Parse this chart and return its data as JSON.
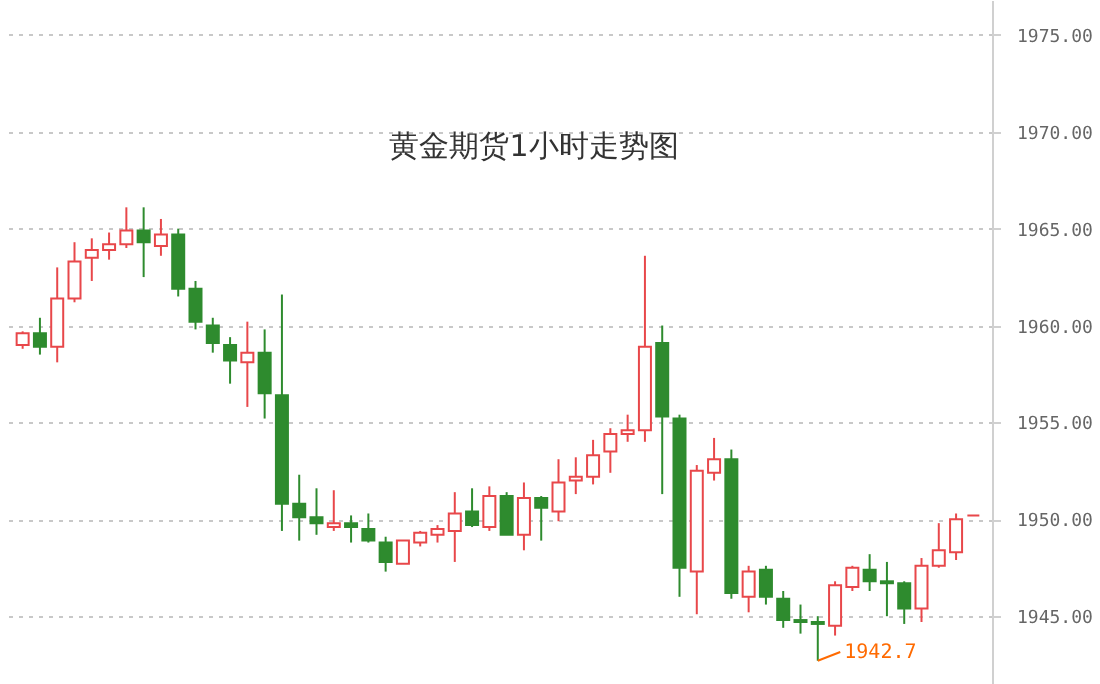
{
  "chart_data": {
    "type": "candlestick",
    "title": "黄金期货1小时走势图",
    "categories": [
      null,
      null,
      null,
      null,
      null,
      null,
      null,
      null,
      null,
      null,
      null,
      null,
      null,
      null,
      null,
      null,
      null,
      null,
      null,
      null,
      null,
      null,
      null,
      null,
      null,
      null,
      null,
      null,
      null,
      null,
      null,
      null,
      null,
      null,
      null,
      null,
      null,
      null,
      null,
      null,
      null,
      null,
      null,
      null,
      null,
      null,
      null,
      null,
      null,
      null,
      null,
      null,
      null,
      null,
      null,
      null
    ],
    "ohlc": [
      [
        1959.0,
        1959.7,
        1958.8,
        1959.6
      ],
      [
        1959.6,
        1960.4,
        1958.5,
        1958.9
      ],
      [
        1958.9,
        1963.0,
        1958.1,
        1961.4
      ],
      [
        1961.4,
        1964.3,
        1961.2,
        1963.3
      ],
      [
        1963.5,
        1964.5,
        1962.3,
        1963.9
      ],
      [
        1963.9,
        1964.8,
        1963.4,
        1964.2
      ],
      [
        1964.2,
        1966.1,
        1964.0,
        1964.9
      ],
      [
        1964.9,
        1966.1,
        1962.5,
        1964.3
      ],
      [
        1964.1,
        1965.5,
        1963.6,
        1964.7
      ],
      [
        1964.7,
        1965.0,
        1961.5,
        1961.9
      ],
      [
        1961.9,
        1962.3,
        1959.8,
        1960.2
      ],
      [
        1960.0,
        1960.4,
        1958.6,
        1959.1
      ],
      [
        1959.0,
        1959.4,
        1957.0,
        1958.2
      ],
      [
        1958.1,
        1960.2,
        1955.8,
        1958.6
      ],
      [
        1958.6,
        1959.8,
        1955.2,
        1956.5
      ],
      [
        1956.4,
        1961.6,
        1949.4,
        1950.8
      ],
      [
        1950.8,
        1952.3,
        1948.9,
        1950.1
      ],
      [
        1950.1,
        1951.6,
        1949.2,
        1949.8
      ],
      [
        1949.6,
        1951.5,
        1949.4,
        1949.8
      ],
      [
        1949.8,
        1950.2,
        1948.8,
        1949.6
      ],
      [
        1949.5,
        1950.3,
        1948.8,
        1948.9
      ],
      [
        1948.8,
        1949.1,
        1947.3,
        1947.8
      ],
      [
        1947.7,
        1948.9,
        1947.7,
        1948.9
      ],
      [
        1948.8,
        1949.4,
        1948.6,
        1949.3
      ],
      [
        1949.2,
        1949.7,
        1948.8,
        1949.5
      ],
      [
        1949.4,
        1951.4,
        1947.8,
        1950.3
      ],
      [
        1950.4,
        1951.6,
        1949.6,
        1949.7
      ],
      [
        1949.6,
        1951.7,
        1949.4,
        1951.2
      ],
      [
        1951.2,
        1951.4,
        1949.2,
        1949.2
      ],
      [
        1949.2,
        1951.9,
        1948.4,
        1951.1
      ],
      [
        1951.1,
        1951.2,
        1948.9,
        1950.6
      ],
      [
        1950.4,
        1953.1,
        1949.9,
        1951.9
      ],
      [
        1952.0,
        1953.2,
        1951.3,
        1952.2
      ],
      [
        1952.2,
        1954.1,
        1951.8,
        1953.3
      ],
      [
        1953.5,
        1954.7,
        1952.4,
        1954.4
      ],
      [
        1954.4,
        1955.4,
        1954.0,
        1954.6
      ],
      [
        1954.6,
        1963.6,
        1954.0,
        1958.9
      ],
      [
        1959.1,
        1960.0,
        1951.3,
        1955.3
      ],
      [
        1955.2,
        1955.4,
        1946.0,
        1947.5
      ],
      [
        1947.3,
        1952.8,
        1945.1,
        1952.5
      ],
      [
        1952.4,
        1954.2,
        1952.0,
        1953.1
      ],
      [
        1953.1,
        1953.6,
        1945.9,
        1946.2
      ],
      [
        1946.0,
        1947.6,
        1945.2,
        1947.3
      ],
      [
        1947.4,
        1947.6,
        1945.6,
        1946.0
      ],
      [
        1945.9,
        1946.3,
        1944.4,
        1944.8
      ],
      [
        1944.8,
        1945.6,
        1944.1,
        1944.7
      ],
      [
        1944.7,
        1945.0,
        1942.7,
        1944.6
      ],
      [
        1944.5,
        1946.8,
        1944.0,
        1946.6
      ],
      [
        1946.5,
        1947.6,
        1946.3,
        1947.5
      ],
      [
        1947.4,
        1948.2,
        1946.3,
        1946.8
      ],
      [
        1946.8,
        1947.8,
        1945.0,
        1946.7
      ],
      [
        1946.7,
        1946.8,
        1944.6,
        1945.4
      ],
      [
        1945.4,
        1948.0,
        1944.7,
        1947.6
      ],
      [
        1947.6,
        1949.8,
        1947.5,
        1948.4
      ],
      [
        1948.3,
        1950.3,
        1947.9,
        1950.0
      ],
      [
        1950.2,
        1950.2,
        1950.2,
        1950.2
      ]
    ],
    "colors": [
      "#e8474a",
      "#2e8b2e",
      "#e8474a",
      "#e8474a",
      "#e8474a",
      "#e8474a",
      "#e8474a",
      "#2e8b2e",
      "#e8474a",
      "#2e8b2e",
      "#2e8b2e",
      "#2e8b2e",
      "#2e8b2e",
      "#e8474a",
      "#2e8b2e",
      "#2e8b2e",
      "#2e8b2e",
      "#2e8b2e",
      "#e8474a",
      "#2e8b2e",
      "#2e8b2e",
      "#2e8b2e",
      "#e8474a",
      "#e8474a",
      "#e8474a",
      "#e8474a",
      "#2e8b2e",
      "#e8474a",
      "#2e8b2e",
      "#e8474a",
      "#2e8b2e",
      "#e8474a",
      "#e8474a",
      "#e8474a",
      "#e8474a",
      "#e8474a",
      "#e8474a",
      "#2e8b2e",
      "#2e8b2e",
      "#e8474a",
      "#e8474a",
      "#2e8b2e",
      "#e8474a",
      "#2e8b2e",
      "#2e8b2e",
      "#2e8b2e",
      "#2e8b2e",
      "#e8474a",
      "#e8474a",
      "#2e8b2e",
      "#2e8b2e",
      "#2e8b2e",
      "#e8474a",
      "#e8474a",
      "#e8474a",
      "#e8474a"
    ],
    "ylim": [
      1941.5,
      1976.8
    ],
    "yticks": [
      {
        "value": 1945,
        "label": "1945.00"
      },
      {
        "value": 1950,
        "label": "1950.00"
      },
      {
        "value": 1955,
        "label": "1955.00"
      },
      {
        "value": 1960,
        "label": "1960.00"
      },
      {
        "value": 1965,
        "label": "1965.00"
      },
      {
        "value": 1970,
        "label": "1970.00"
      },
      {
        "value": 1975,
        "label": "1975.00"
      }
    ],
    "grid": "y",
    "annotations": [
      "1942.7"
    ]
  }
}
